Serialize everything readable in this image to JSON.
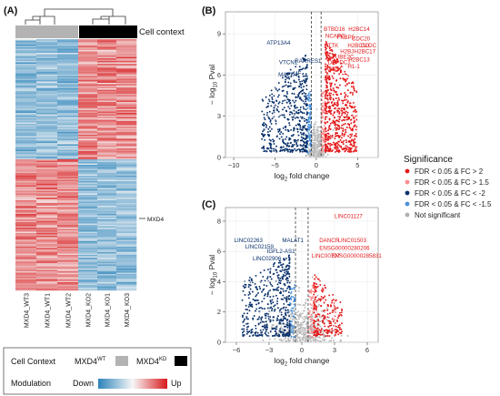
{
  "panels": {
    "a": {
      "label": "(A)"
    },
    "b": {
      "label": "(B)"
    },
    "c": {
      "label": "(C)"
    }
  },
  "heatmap": {
    "context_label": "Cell context",
    "columns": [
      "MXD4_WT3",
      "MXD4_WT1",
      "MXD4_WT2",
      "MXD4_KO2",
      "MXD4_KO1",
      "MXD4_KO3"
    ],
    "gene_marker": "MXD4",
    "legend": {
      "cell_context_title": "Cell Context",
      "wt_base": "MXD4",
      "wt_sup": "WT",
      "ko_base": "MXD4",
      "ko_sup": "KD",
      "modulation_title": "Modulation",
      "down_label": "Down",
      "up_label": "Up"
    },
    "colors": {
      "wt": "#b3b3b3",
      "ko": "#000000",
      "down": "#2b83ba",
      "mid": "#f7f7f7",
      "up": "#d7191c"
    }
  },
  "volcano_legend": {
    "title": "Significance",
    "items": [
      {
        "label": "FDR < 0.05 & FC > 2",
        "color": "#e31a1c"
      },
      {
        "label": "FDR < 0.05 & FC > 1.5",
        "color": "#fc8d8d"
      },
      {
        "label": "FDR < 0.05 & FC < -2",
        "color": "#08306b"
      },
      {
        "label": "FDR < 0.05 & FC < -1.5",
        "color": "#4a90d9"
      },
      {
        "label": "Not significant",
        "color": "#b0b0b0"
      }
    ]
  },
  "chart_data": [
    {
      "type": "scatter",
      "panel": "B",
      "xlabel_base": "log",
      "xlabel_sub": "2",
      "xlabel_rest": " fold change",
      "ylabel_pre": "− log",
      "ylabel_sub": "10",
      "ylabel_rest": " Pval",
      "xticks": [
        -10,
        -5,
        0,
        5
      ],
      "yticks": [
        0,
        3,
        6,
        9
      ],
      "xlim": [
        -11,
        7.5
      ],
      "ylim": [
        0,
        10.6
      ],
      "vlines": [
        -0.58,
        0.58
      ],
      "labeled_genes_down": [
        {
          "name": "ATP13A4",
          "x": -6.0,
          "y": 8.2
        },
        {
          "name": "VTCN1",
          "x": -4.5,
          "y": 6.8
        },
        {
          "name": "MAPK4",
          "x": -4.6,
          "y": 5.9
        },
        {
          "name": "RARRES1",
          "x": -2.6,
          "y": 6.9
        },
        {
          "name": "LIF",
          "x": -2.8,
          "y": 6.0
        }
      ],
      "labeled_genes_up": [
        {
          "name": "BTBD16",
          "x": 0.9,
          "y": 9.2
        },
        {
          "name": "H2BC14",
          "x": 3.9,
          "y": 9.2
        },
        {
          "name": "NCAPG",
          "x": 1.1,
          "y": 8.7
        },
        {
          "name": "FKBP5",
          "x": 2.5,
          "y": 8.6
        },
        {
          "name": "CDC20",
          "x": 4.3,
          "y": 8.5
        },
        {
          "name": "TTK",
          "x": 1.4,
          "y": 8.0
        },
        {
          "name": "H2BC10",
          "x": 3.8,
          "y": 8.0
        },
        {
          "name": "GLDC",
          "x": 5.4,
          "y": 8.0
        },
        {
          "name": "H2BJ",
          "x": 2.9,
          "y": 7.6
        },
        {
          "name": "H2BC17",
          "x": 4.6,
          "y": 7.6
        },
        {
          "name": "UBE2C",
          "x": 2.3,
          "y": 7.2
        },
        {
          "name": "H2BC13",
          "x": 3.9,
          "y": 7.0
        },
        {
          "name": "DEPDC1",
          "x": 1.4,
          "y": 6.8
        },
        {
          "name": "H1-1",
          "x": 3.8,
          "y": 6.5
        },
        {
          "name": "ASPM",
          "x": 1.1,
          "y": 6.3
        }
      ]
    },
    {
      "type": "scatter",
      "panel": "C",
      "xlabel_base": "log",
      "xlabel_sub": "2",
      "xlabel_rest": " fold change",
      "ylabel_pre": "− log",
      "ylabel_sub": "10",
      "ylabel_rest": " Pval",
      "xticks": [
        -6,
        -3,
        0,
        3,
        6
      ],
      "yticks": [
        0,
        2,
        4,
        6,
        8
      ],
      "xlim": [
        -7,
        7
      ],
      "ylim": [
        0,
        8.9
      ],
      "vlines": [
        -0.58,
        0.58
      ],
      "labeled_genes_down": [
        {
          "name": "LINC02263",
          "x": -6.2,
          "y": 6.6
        },
        {
          "name": "LINC02159",
          "x": -5.2,
          "y": 6.2
        },
        {
          "name": "IGFL2-AS1",
          "x": -3.2,
          "y": 5.9
        },
        {
          "name": "MALAT1",
          "x": -1.8,
          "y": 6.6
        },
        {
          "name": "LINC02906",
          "x": -4.5,
          "y": 5.4
        }
      ],
      "labeled_genes_up": [
        {
          "name": "LINC01127",
          "x": 3.0,
          "y": 8.2
        },
        {
          "name": "DANCR",
          "x": 1.6,
          "y": 6.6
        },
        {
          "name": "LINC01503",
          "x": 3.3,
          "y": 6.6
        },
        {
          "name": "ENSG00000280206",
          "x": 1.6,
          "y": 6.1
        },
        {
          "name": "LINC00707",
          "x": 0.9,
          "y": 5.6
        },
        {
          "name": "ENSG00000285831",
          "x": 2.7,
          "y": 5.6
        }
      ]
    }
  ]
}
